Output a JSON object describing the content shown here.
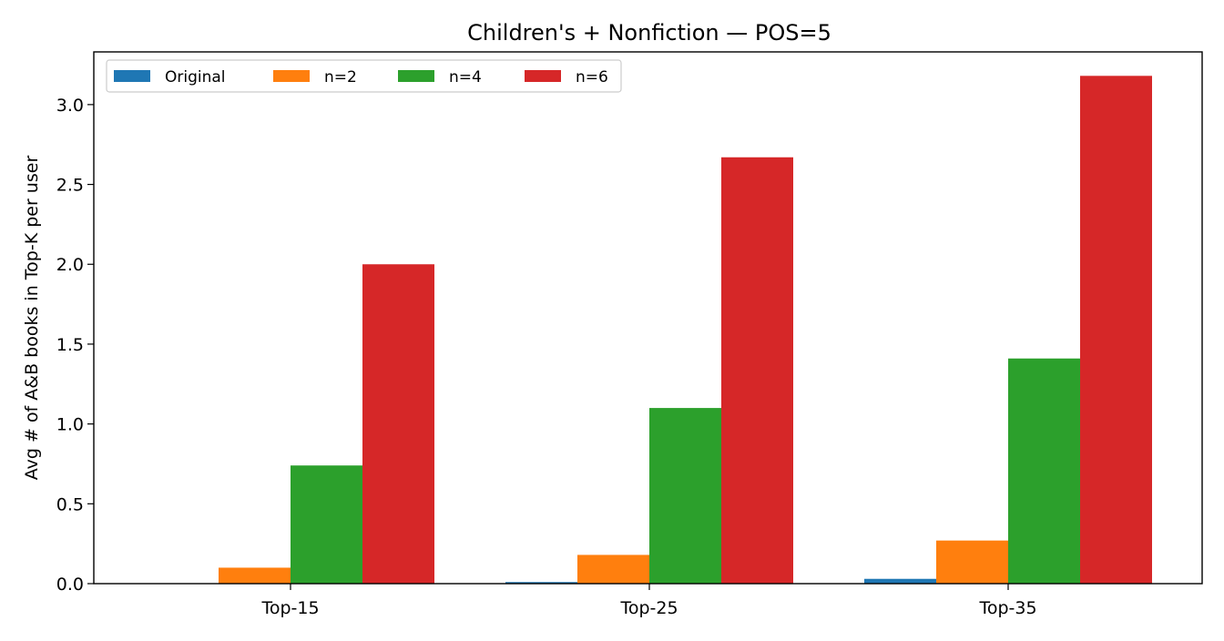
{
  "chart_data": {
    "type": "bar",
    "title": "Children's + Nonfiction — POS=5",
    "xlabel": "",
    "ylabel": "Avg # of A&B books in Top-K per user",
    "categories": [
      "Top-15",
      "Top-25",
      "Top-35"
    ],
    "ylim": [
      0,
      3.33
    ],
    "yticks": [
      "0.0",
      "0.5",
      "1.0",
      "1.5",
      "2.0",
      "2.5",
      "3.0"
    ],
    "ytick_values": [
      0.0,
      0.5,
      1.0,
      1.5,
      2.0,
      2.5,
      3.0
    ],
    "grid": false,
    "legend": {
      "placement": "top-left",
      "columns": 4
    },
    "series": [
      {
        "name": "Original",
        "color": "#1f77b4",
        "values": [
          0.0,
          0.01,
          0.03
        ]
      },
      {
        "name": "n=2",
        "color": "#ff7f0e",
        "values": [
          0.1,
          0.18,
          0.27
        ]
      },
      {
        "name": "n=4",
        "color": "#2ca02c",
        "values": [
          0.74,
          1.1,
          1.41
        ]
      },
      {
        "name": "n=6",
        "color": "#d62728",
        "values": [
          2.0,
          2.67,
          3.18
        ]
      }
    ]
  }
}
